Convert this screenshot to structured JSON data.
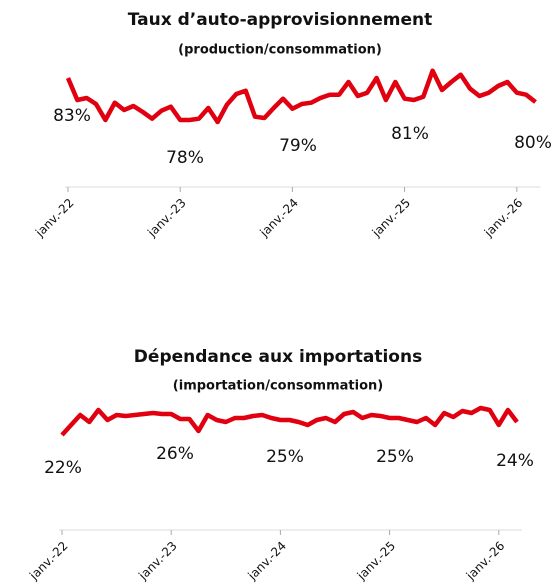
{
  "chart_data": [
    {
      "type": "line",
      "title": "Taux d’auto-approvisionnement",
      "subtitle": "(production/consommation)",
      "categories": [
        "janv.-22",
        null,
        null,
        null,
        null,
        null,
        null,
        null,
        null,
        null,
        null,
        null,
        "janv.-23",
        null,
        null,
        null,
        null,
        null,
        null,
        null,
        null,
        null,
        null,
        null,
        "janv.-24",
        null,
        null,
        null,
        null,
        null,
        null,
        null,
        null,
        null,
        null,
        null,
        "janv.-25",
        null,
        null,
        null,
        null,
        null,
        null,
        null,
        null,
        null,
        null,
        null,
        "janv.-26",
        null,
        null
      ],
      "series": [
        {
          "color": "#e1000f",
          "values": [
            84.8,
            81.5,
            81.8,
            80.9,
            78.5,
            81.1,
            80.0,
            80.6,
            79.7,
            78.7,
            79.9,
            80.5,
            78.5,
            78.5,
            78.7,
            80.3,
            78.2,
            80.8,
            82.4,
            82.9,
            79.0,
            78.8,
            80.3,
            81.7,
            80.2,
            80.9,
            81.1,
            81.8,
            82.3,
            82.3,
            84.2,
            82.1,
            82.6,
            84.8,
            81.5,
            84.2,
            81.7,
            81.5,
            82.0,
            85.9,
            83.0,
            84.2,
            85.3,
            83.2,
            82.1,
            82.6,
            83.6,
            84.2,
            82.6,
            82.3,
            81.2
          ]
        }
      ],
      "ylim": [
        76,
        88
      ],
      "annual_averages": {
        "values": [
          83,
          78,
          79,
          81,
          80
        ],
        "value_labels": [
          "83%",
          "78%",
          "79%",
          "81%",
          "80%"
        ]
      }
    },
    {
      "type": "line",
      "title": "Dépendance aux importations",
      "subtitle": "(importation/consommation)",
      "categories": [
        "janv.-22",
        null,
        null,
        null,
        null,
        null,
        null,
        null,
        null,
        null,
        null,
        null,
        "janv.-23",
        null,
        null,
        null,
        null,
        null,
        null,
        null,
        null,
        null,
        null,
        null,
        "janv.-24",
        null,
        null,
        null,
        null,
        null,
        null,
        null,
        null,
        null,
        null,
        null,
        "janv.-25",
        null,
        null,
        null,
        null,
        null,
        null,
        null,
        null,
        null,
        null,
        null,
        "janv.-26",
        null,
        null
      ],
      "series": [
        {
          "color": "#e1000f",
          "values": [
            23.5,
            24.5,
            25.5,
            24.8,
            26.0,
            25.0,
            25.5,
            25.4,
            25.5,
            25.6,
            25.7,
            25.6,
            25.6,
            25.1,
            25.1,
            23.9,
            25.5,
            25.0,
            24.8,
            25.2,
            25.2,
            25.4,
            25.5,
            25.2,
            25.0,
            25.0,
            24.8,
            24.5,
            25.0,
            25.2,
            24.8,
            25.6,
            25.8,
            25.2,
            25.5,
            25.4,
            25.2,
            25.2,
            25.0,
            24.8,
            25.2,
            24.5,
            25.7,
            25.3,
            25.9,
            25.7,
            26.2,
            26.0,
            24.5,
            26.0,
            24.8
          ]
        }
      ],
      "ylim": [
        22,
        28
      ],
      "annual_averages": {
        "values": [
          22,
          26,
          25,
          25,
          24
        ],
        "value_labels": [
          "22%",
          "26%",
          "25%",
          "25%",
          "24%"
        ]
      }
    }
  ]
}
